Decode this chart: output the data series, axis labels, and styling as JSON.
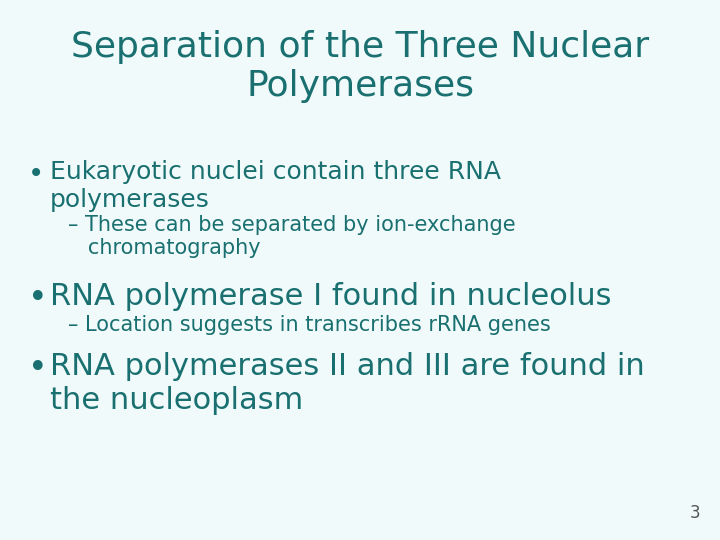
{
  "title_line1": "Separation of the Three Nuclear",
  "title_line2": "Polymerases",
  "title_color": "#1a7070",
  "title_fontsize": 26,
  "background_color": "#f0fafa",
  "bullet_color": "#1a7070",
  "bullet1_text_line1": "Eukaryotic nuclei contain three RNA",
  "bullet1_text_line2": "polymerases",
  "bullet1_fontsize": 18,
  "sub1_text_line1": "– These can be separated by ion-exchange",
  "sub1_text_line2": "   chromatography",
  "sub1_fontsize": 15,
  "bullet2_text": "RNA polymerase I found in nucleolus",
  "bullet2_fontsize": 22,
  "sub2_text": "– Location suggests in transcribes rRNA genes",
  "sub2_fontsize": 15,
  "bullet3_text_line1": "RNA polymerases II and III are found in",
  "bullet3_text_line2": "the nucleoplasm",
  "bullet3_fontsize": 22,
  "page_number": "3",
  "page_number_fontsize": 12,
  "page_number_color": "#555555"
}
